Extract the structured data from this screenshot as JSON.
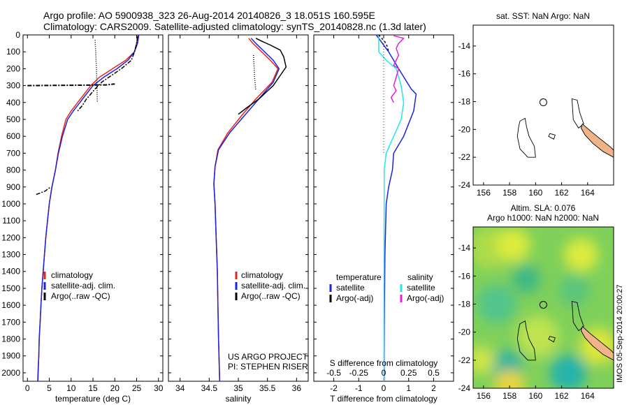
{
  "header": {
    "line1": "Argo profile: AO 5900938_323 26-Aug-2014 20140826_3 18.051S 160.595E",
    "line2": "Climatology: CARS2009. Satellite-adjusted climatology: synTS_20140828.nc (1.3d later)"
  },
  "side_stamp": "IMOS 05-Sep-2014 20:00:27",
  "colors": {
    "climatology": "#e8241c",
    "satellite": "#1a23e0",
    "argo": "#000000",
    "salinity_sat": "#22e6e6",
    "salinity_argo": "#e020e0",
    "land": "#f0b488"
  },
  "chart_data": [
    {
      "id": "temperature",
      "type": "line",
      "xlabel": "temperature (deg C)",
      "ylim": [
        2050,
        0
      ],
      "xlim": [
        -1,
        31
      ],
      "xticks": [
        0,
        5,
        10,
        15,
        20,
        25,
        30
      ],
      "yticks": [
        0,
        100,
        200,
        300,
        400,
        500,
        600,
        700,
        800,
        900,
        1000,
        1100,
        1200,
        1300,
        1400,
        1500,
        1600,
        1700,
        1800,
        1900,
        2000
      ],
      "legend": [
        "climatology",
        "satellite-adj. clim.",
        "Argo(..raw -QC)"
      ],
      "series": [
        {
          "name": "climatology",
          "key": "climatology",
          "points": [
            [
              25.3,
              0
            ],
            [
              25,
              50
            ],
            [
              24.5,
              100
            ],
            [
              22.5,
              150
            ],
            [
              19.5,
              200
            ],
            [
              16.5,
              250
            ],
            [
              14.5,
              300
            ],
            [
              13,
              350
            ],
            [
              11.5,
              400
            ],
            [
              10,
              450
            ],
            [
              8.8,
              500
            ],
            [
              7.8,
              600
            ],
            [
              7,
              700
            ],
            [
              6.4,
              800
            ],
            [
              5.6,
              900
            ],
            [
              5,
              1000
            ],
            [
              4.6,
              1100
            ],
            [
              4.2,
              1200
            ],
            [
              3.9,
              1300
            ],
            [
              3.6,
              1400
            ],
            [
              3.3,
              1500
            ],
            [
              3.1,
              1600
            ],
            [
              2.9,
              1700
            ],
            [
              2.7,
              1800
            ],
            [
              2.6,
              1900
            ],
            [
              2.4,
              2000
            ],
            [
              2.35,
              2050
            ]
          ]
        },
        {
          "name": "satellite-adj. clim.",
          "key": "satellite",
          "points": [
            [
              25.5,
              0
            ],
            [
              25.2,
              50
            ],
            [
              24.5,
              100
            ],
            [
              23,
              150
            ],
            [
              20.5,
              200
            ],
            [
              17.5,
              250
            ],
            [
              15,
              300
            ],
            [
              13.5,
              350
            ],
            [
              12,
              400
            ],
            [
              10.5,
              450
            ],
            [
              9.2,
              500
            ],
            [
              8,
              600
            ],
            [
              7.1,
              700
            ],
            [
              6.4,
              800
            ],
            [
              5.6,
              900
            ],
            [
              5,
              1000
            ],
            [
              4.6,
              1100
            ],
            [
              4.2,
              1200
            ],
            [
              3.9,
              1300
            ],
            [
              3.6,
              1400
            ],
            [
              3.3,
              1500
            ],
            [
              3.1,
              1600
            ],
            [
              2.9,
              1700
            ],
            [
              2.7,
              1800
            ],
            [
              2.6,
              1900
            ],
            [
              2.45,
              2000
            ],
            [
              2.4,
              2050
            ]
          ]
        },
        {
          "name": "Argo(..raw -QC)",
          "key": "argo",
          "dash": "6 2 2 2",
          "points": [
            [
              25.2,
              10
            ],
            [
              25,
              50
            ],
            [
              24.5,
              100
            ],
            [
              23.8,
              150
            ],
            [
              21.5,
              200
            ],
            [
              17,
              280
            ],
            [
              15.5,
              320
            ],
            [
              13.5,
              380
            ],
            [
              12.5,
              420
            ],
            [
              11.5,
              450
            ]
          ]
        },
        {
          "name": "Argo spike 300",
          "key": "argo",
          "dash": "6 2 2 2",
          "width": 2,
          "points": [
            [
              0,
              300
            ],
            [
              10,
              298
            ],
            [
              18,
              296
            ],
            [
              20,
              290
            ]
          ]
        },
        {
          "name": "Argo spike 900",
          "key": "argo",
          "dash": "6 2 2 2",
          "points": [
            [
              2,
              945
            ],
            [
              4,
              925
            ],
            [
              5.3,
              900
            ]
          ]
        },
        {
          "name": "Argo raw dotted",
          "key": "argo",
          "dash": "1 2",
          "points": [
            [
              15.5,
              30
            ],
            [
              15.8,
              200
            ],
            [
              16,
              400
            ]
          ]
        }
      ]
    },
    {
      "id": "salinity",
      "type": "line",
      "xlabel": "salinity",
      "ylim": [
        2050,
        0
      ],
      "xlim": [
        33.8,
        36.2
      ],
      "xticks": [
        34,
        34.5,
        35,
        35.5,
        36
      ],
      "legend": [
        "climatology",
        "satellite-adj. clim.",
        "Argo(..raw -QC)"
      ],
      "annotation": [
        "US ARGO PROJECT",
        "PI: STEPHEN RISER"
      ],
      "series": [
        {
          "name": "climatology",
          "key": "climatology",
          "points": [
            [
              35.18,
              20
            ],
            [
              35.25,
              50
            ],
            [
              35.4,
              100
            ],
            [
              35.55,
              150
            ],
            [
              35.68,
              200
            ],
            [
              35.58,
              280
            ],
            [
              35.3,
              380
            ],
            [
              35.05,
              480
            ],
            [
              34.82,
              580
            ],
            [
              34.65,
              680
            ],
            [
              34.6,
              780
            ],
            [
              34.58,
              880
            ],
            [
              34.6,
              1000
            ],
            [
              34.62,
              1200
            ],
            [
              34.64,
              1400
            ],
            [
              34.65,
              1600
            ],
            [
              34.66,
              1800
            ],
            [
              34.68,
              2050
            ]
          ]
        },
        {
          "name": "satellite-adj. clim.",
          "key": "satellite",
          "points": [
            [
              35.22,
              20
            ],
            [
              35.3,
              50
            ],
            [
              35.45,
              100
            ],
            [
              35.6,
              150
            ],
            [
              35.7,
              200
            ],
            [
              35.6,
              280
            ],
            [
              35.35,
              380
            ],
            [
              35.1,
              480
            ],
            [
              34.85,
              580
            ],
            [
              34.66,
              680
            ],
            [
              34.6,
              780
            ],
            [
              34.58,
              880
            ],
            [
              34.6,
              1000
            ],
            [
              34.62,
              1200
            ],
            [
              34.64,
              1400
            ],
            [
              34.65,
              1600
            ],
            [
              34.66,
              1800
            ],
            [
              34.68,
              2050
            ]
          ]
        },
        {
          "name": "Argo(..raw -QC)",
          "key": "argo",
          "points": [
            [
              35.3,
              20
            ],
            [
              35.42,
              40
            ],
            [
              35.55,
              60
            ],
            [
              35.72,
              90
            ],
            [
              35.78,
              130
            ],
            [
              35.82,
              190
            ],
            [
              35.7,
              250
            ],
            [
              35.6,
              300
            ],
            [
              35.35,
              380
            ],
            [
              35.15,
              430
            ],
            [
              35.0,
              470
            ]
          ]
        },
        {
          "name": "Argo raw dotted",
          "key": "argo",
          "dash": "1 2",
          "points": [
            [
              35.26,
              120
            ],
            [
              35.28,
              250
            ],
            [
              35.3,
              330
            ]
          ]
        }
      ]
    },
    {
      "id": "difference",
      "type": "line",
      "xlabel": "T difference from climatology",
      "top_label": "S difference from climatology",
      "ylim": [
        2050,
        0
      ],
      "xlim": [
        -2.8,
        2.8
      ],
      "xticks": [
        -2,
        -1,
        0,
        1,
        2
      ],
      "top_ticks": [
        [
          -2,
          "-0.5"
        ],
        [
          -1,
          "-0.25"
        ],
        [
          0,
          "0"
        ],
        [
          1,
          "0.25"
        ],
        [
          2,
          "0.5"
        ]
      ],
      "legend_t_title": "temperature",
      "legend_s_title": "salinity",
      "legend_t": [
        "satellite",
        "Argo(-adj)"
      ],
      "legend_s": [
        "satellite",
        "Argo(-adj)"
      ],
      "series": [
        {
          "name": "temperature satellite",
          "key": "satellite",
          "points": [
            [
              -0.3,
              0
            ],
            [
              0.2,
              100
            ],
            [
              0.6,
              200
            ],
            [
              1.1,
              320
            ],
            [
              1.3,
              350
            ],
            [
              1.2,
              450
            ],
            [
              0.8,
              600
            ],
            [
              0.4,
              700
            ],
            [
              0.35,
              800
            ],
            [
              0.2,
              900
            ],
            [
              0.1,
              1000
            ],
            [
              0.05,
              1300
            ],
            [
              0.03,
              1600
            ],
            [
              0.02,
              1900
            ],
            [
              0.02,
              2050
            ]
          ]
        },
        {
          "name": "salinity satellite",
          "key": "salinity_sat",
          "points": [
            [
              -0.2,
              0
            ],
            [
              -0.2,
              100
            ],
            [
              0.1,
              150
            ],
            [
              0.5,
              200
            ],
            [
              0.7,
              300
            ],
            [
              0.8,
              400
            ],
            [
              0.7,
              500
            ],
            [
              0.4,
              600
            ],
            [
              0.1,
              700
            ],
            [
              0.02,
              800
            ],
            [
              0.02,
              1000
            ],
            [
              0.01,
              1500
            ],
            [
              0.01,
              2050
            ]
          ]
        },
        {
          "name": "salinity Argo",
          "key": "salinity_argo",
          "points": [
            [
              0.4,
              5
            ],
            [
              0.8,
              20
            ],
            [
              0.6,
              50
            ],
            [
              0.5,
              80
            ],
            [
              0.6,
              120
            ],
            [
              0.5,
              150
            ],
            [
              0.4,
              180
            ],
            [
              0.6,
              200
            ],
            [
              0.5,
              250
            ],
            [
              0.4,
              300
            ],
            [
              0.5,
              330
            ],
            [
              0.3,
              370
            ],
            [
              0.4,
              400
            ]
          ]
        },
        {
          "name": "temperature Argo",
          "key": "argo",
          "dash": "3 3",
          "points": [
            [
              -0.2,
              0
            ],
            [
              0.1,
              50
            ],
            [
              0.2,
              100
            ]
          ]
        },
        {
          "name": "zero line",
          "key": "argo",
          "dash": "1 3",
          "width": 0.8,
          "points": [
            [
              0,
              0
            ],
            [
              0,
              700
            ]
          ]
        }
      ]
    },
    {
      "id": "sst_map",
      "type": "map",
      "title": "sat. SST: NaN Argo: NaN",
      "xlim": [
        155.2,
        166
      ],
      "ylim": [
        -24,
        -12.5
      ],
      "xticks": [
        156,
        158,
        160,
        162,
        164
      ],
      "yticks": [
        -14,
        -16,
        -18,
        -20,
        -22,
        -24
      ],
      "float_position": [
        160.595,
        -18.051
      ]
    },
    {
      "id": "sla_map",
      "type": "heatmap",
      "title_line1": "Altim. SLA: 0.076",
      "title_line2": "Argo h1000: NaN h2000: NaN",
      "xlim": [
        155.2,
        166
      ],
      "ylim": [
        -24,
        -12.5
      ],
      "xticks": [
        156,
        158,
        160,
        162,
        164
      ],
      "yticks": [
        -14,
        -16,
        -18,
        -20,
        -22,
        -24
      ],
      "float_position": [
        160.595,
        -18.051
      ],
      "blobs": [
        {
          "x": 156.5,
          "y": -14,
          "r": 1.6,
          "c": "#aedc4a"
        },
        {
          "x": 158.3,
          "y": -13.8,
          "r": 1.3,
          "c": "#ddeb3e"
        },
        {
          "x": 163.5,
          "y": -14.5,
          "r": 1.3,
          "c": "#ddeb3e"
        },
        {
          "x": 157,
          "y": -18,
          "r": 1.5,
          "c": "#52c48c"
        },
        {
          "x": 159.3,
          "y": -16.2,
          "r": 1.1,
          "c": "#3fb887"
        },
        {
          "x": 163,
          "y": -17,
          "r": 1.2,
          "c": "#5ac57c"
        },
        {
          "x": 160.2,
          "y": -20.3,
          "r": 1.6,
          "c": "#c0e350"
        },
        {
          "x": 164.8,
          "y": -21,
          "r": 1.4,
          "c": "#dfe63a"
        },
        {
          "x": 157.8,
          "y": -22.4,
          "r": 1.2,
          "c": "#2eb4a0"
        },
        {
          "x": 162.5,
          "y": -22.9,
          "r": 1.4,
          "c": "#27b3aa"
        },
        {
          "x": 158,
          "y": -23.8,
          "r": 1.2,
          "c": "#e8d43c"
        },
        {
          "x": 155.8,
          "y": -22,
          "r": 1.1,
          "c": "#cde44a"
        }
      ]
    }
  ]
}
